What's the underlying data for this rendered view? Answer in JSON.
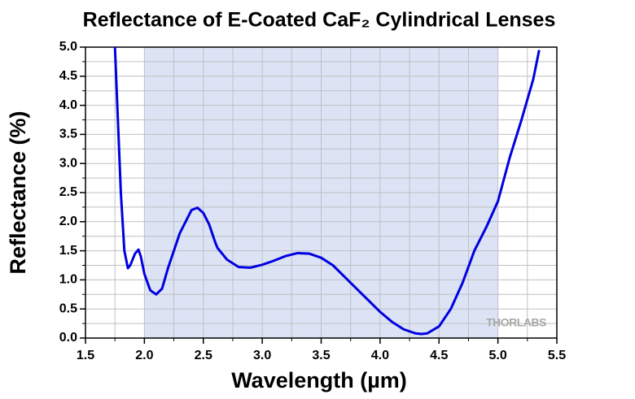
{
  "chart_data": {
    "type": "line",
    "title": "Reflectance of E-Coated CaF₂ Cylindrical Lenses",
    "x_label": "Wavelength (µm)",
    "y_label": "Reflectance (%)",
    "watermark": "THORLABS",
    "xlim": [
      1.5,
      5.5
    ],
    "ylim": [
      0,
      5
    ],
    "xticks": [
      1.5,
      {
        "value": 2,
        "label": "2.0"
      },
      2.5,
      {
        "value": 3,
        "label": "3.0"
      },
      3.5,
      {
        "value": 4,
        "label": "4.0"
      },
      4.5,
      {
        "value": 5,
        "label": "5.0"
      },
      5.5
    ],
    "yticks": [
      {
        "value": 0,
        "label": "0.0"
      },
      0.5,
      {
        "value": 1,
        "label": "1.0"
      },
      1.5,
      {
        "value": 2,
        "label": "2.0"
      },
      2.5,
      {
        "value": 3,
        "label": "3.0"
      },
      3.5,
      {
        "value": 4,
        "label": "4.0"
      },
      4.5,
      {
        "value": 5,
        "label": "5.0"
      }
    ],
    "grid": true,
    "minor_grid_step": 0.25,
    "shaded_region": {
      "x": [
        2.0,
        5.0
      ],
      "color": "#dbe3f5"
    },
    "series": [
      {
        "name": "Reflectance",
        "color": "#0000e0",
        "x": [
          1.75,
          1.78,
          1.8,
          1.83,
          1.86,
          1.88,
          1.92,
          1.95,
          1.97,
          2.0,
          2.05,
          2.1,
          2.15,
          2.2,
          2.3,
          2.4,
          2.45,
          2.5,
          2.55,
          2.6,
          2.62,
          2.7,
          2.8,
          2.9,
          3.0,
          3.1,
          3.2,
          3.3,
          3.4,
          3.5,
          3.6,
          3.7,
          3.8,
          3.9,
          4.0,
          4.1,
          4.2,
          4.3,
          4.35,
          4.4,
          4.5,
          4.6,
          4.7,
          4.8,
          4.9,
          5.0,
          5.1,
          5.2,
          5.3,
          5.35
        ],
        "values": [
          5.0,
          3.5,
          2.5,
          1.5,
          1.2,
          1.25,
          1.45,
          1.52,
          1.4,
          1.1,
          0.82,
          0.75,
          0.85,
          1.2,
          1.8,
          2.2,
          2.24,
          2.15,
          1.95,
          1.65,
          1.55,
          1.35,
          1.22,
          1.21,
          1.26,
          1.33,
          1.41,
          1.46,
          1.45,
          1.38,
          1.25,
          1.05,
          0.85,
          0.65,
          0.45,
          0.28,
          0.15,
          0.08,
          0.07,
          0.08,
          0.2,
          0.5,
          0.95,
          1.5,
          1.9,
          2.35,
          3.1,
          3.75,
          4.45,
          4.95
        ]
      }
    ]
  }
}
